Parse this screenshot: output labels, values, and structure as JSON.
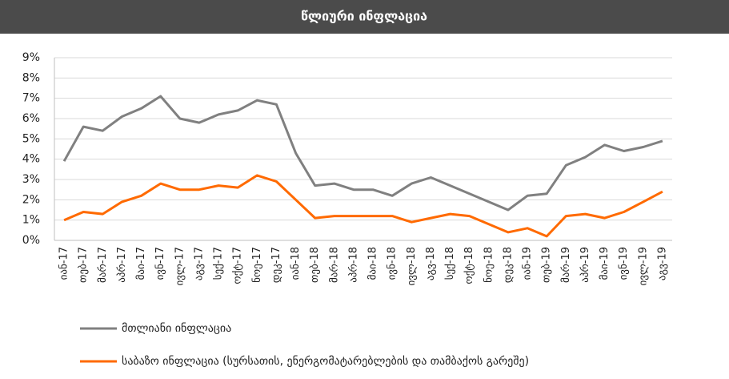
{
  "chart_data": {
    "type": "line",
    "title": "წლიური ინფლაცია",
    "categories": [
      "იან-17",
      "თებ-17",
      "მარ-17",
      "აპრ-17",
      "მაი-17",
      "ივნ-17",
      "ივლ-17",
      "აგვ-17",
      "სექ-17",
      "ოქტ-17",
      "ნოე-17",
      "დეკ-17",
      "იან-18",
      "თებ-18",
      "მარ-18",
      "აპრ-18",
      "მაი-18",
      "ივნ-18",
      "ივლ-18",
      "აგვ-18",
      "სექ-18",
      "ოქტ-18",
      "ნოე-18",
      "დეკ-18",
      "იან-19",
      "თებ-19",
      "მარ-19",
      "აპრ-19",
      "მაი-19",
      "ივნ-19",
      "ივლ-19",
      "აგვ-19"
    ],
    "series": [
      {
        "name": "მთლიანი ინფლაცია",
        "color": "#808080",
        "values": [
          3.9,
          5.6,
          5.4,
          6.1,
          6.5,
          7.1,
          6.0,
          5.8,
          6.2,
          6.4,
          6.9,
          6.7,
          4.3,
          2.7,
          2.8,
          2.5,
          2.5,
          2.2,
          2.8,
          3.1,
          2.7,
          2.3,
          1.9,
          1.5,
          2.2,
          2.3,
          3.7,
          4.1,
          4.7,
          4.4,
          4.6,
          4.9
        ]
      },
      {
        "name": "საბაზო ინფლაცია (სურსათის, ენერგომატარებლების და თამბაქოს გარეშე)",
        "color": "#ff6a00",
        "values": [
          1.0,
          1.4,
          1.3,
          1.9,
          2.2,
          2.8,
          2.5,
          2.5,
          2.7,
          2.6,
          3.2,
          2.9,
          2.0,
          1.1,
          1.2,
          1.2,
          1.2,
          1.2,
          0.9,
          1.1,
          1.3,
          1.2,
          0.8,
          0.4,
          0.6,
          0.2,
          1.2,
          1.3,
          1.1,
          1.4,
          1.9,
          2.4
        ]
      }
    ],
    "ylim": [
      0,
      9
    ],
    "yticks": [
      {
        "value": 0,
        "label": "0%"
      },
      {
        "value": 1,
        "label": "1%"
      },
      {
        "value": 2,
        "label": "2%"
      },
      {
        "value": 3,
        "label": "3%"
      },
      {
        "value": 4,
        "label": "4%"
      },
      {
        "value": 5,
        "label": "5%"
      },
      {
        "value": 6,
        "label": "6%"
      },
      {
        "value": 7,
        "label": "7%"
      },
      {
        "value": 8,
        "label": "8%"
      },
      {
        "value": 9,
        "label": "9%"
      }
    ],
    "grid": true
  }
}
